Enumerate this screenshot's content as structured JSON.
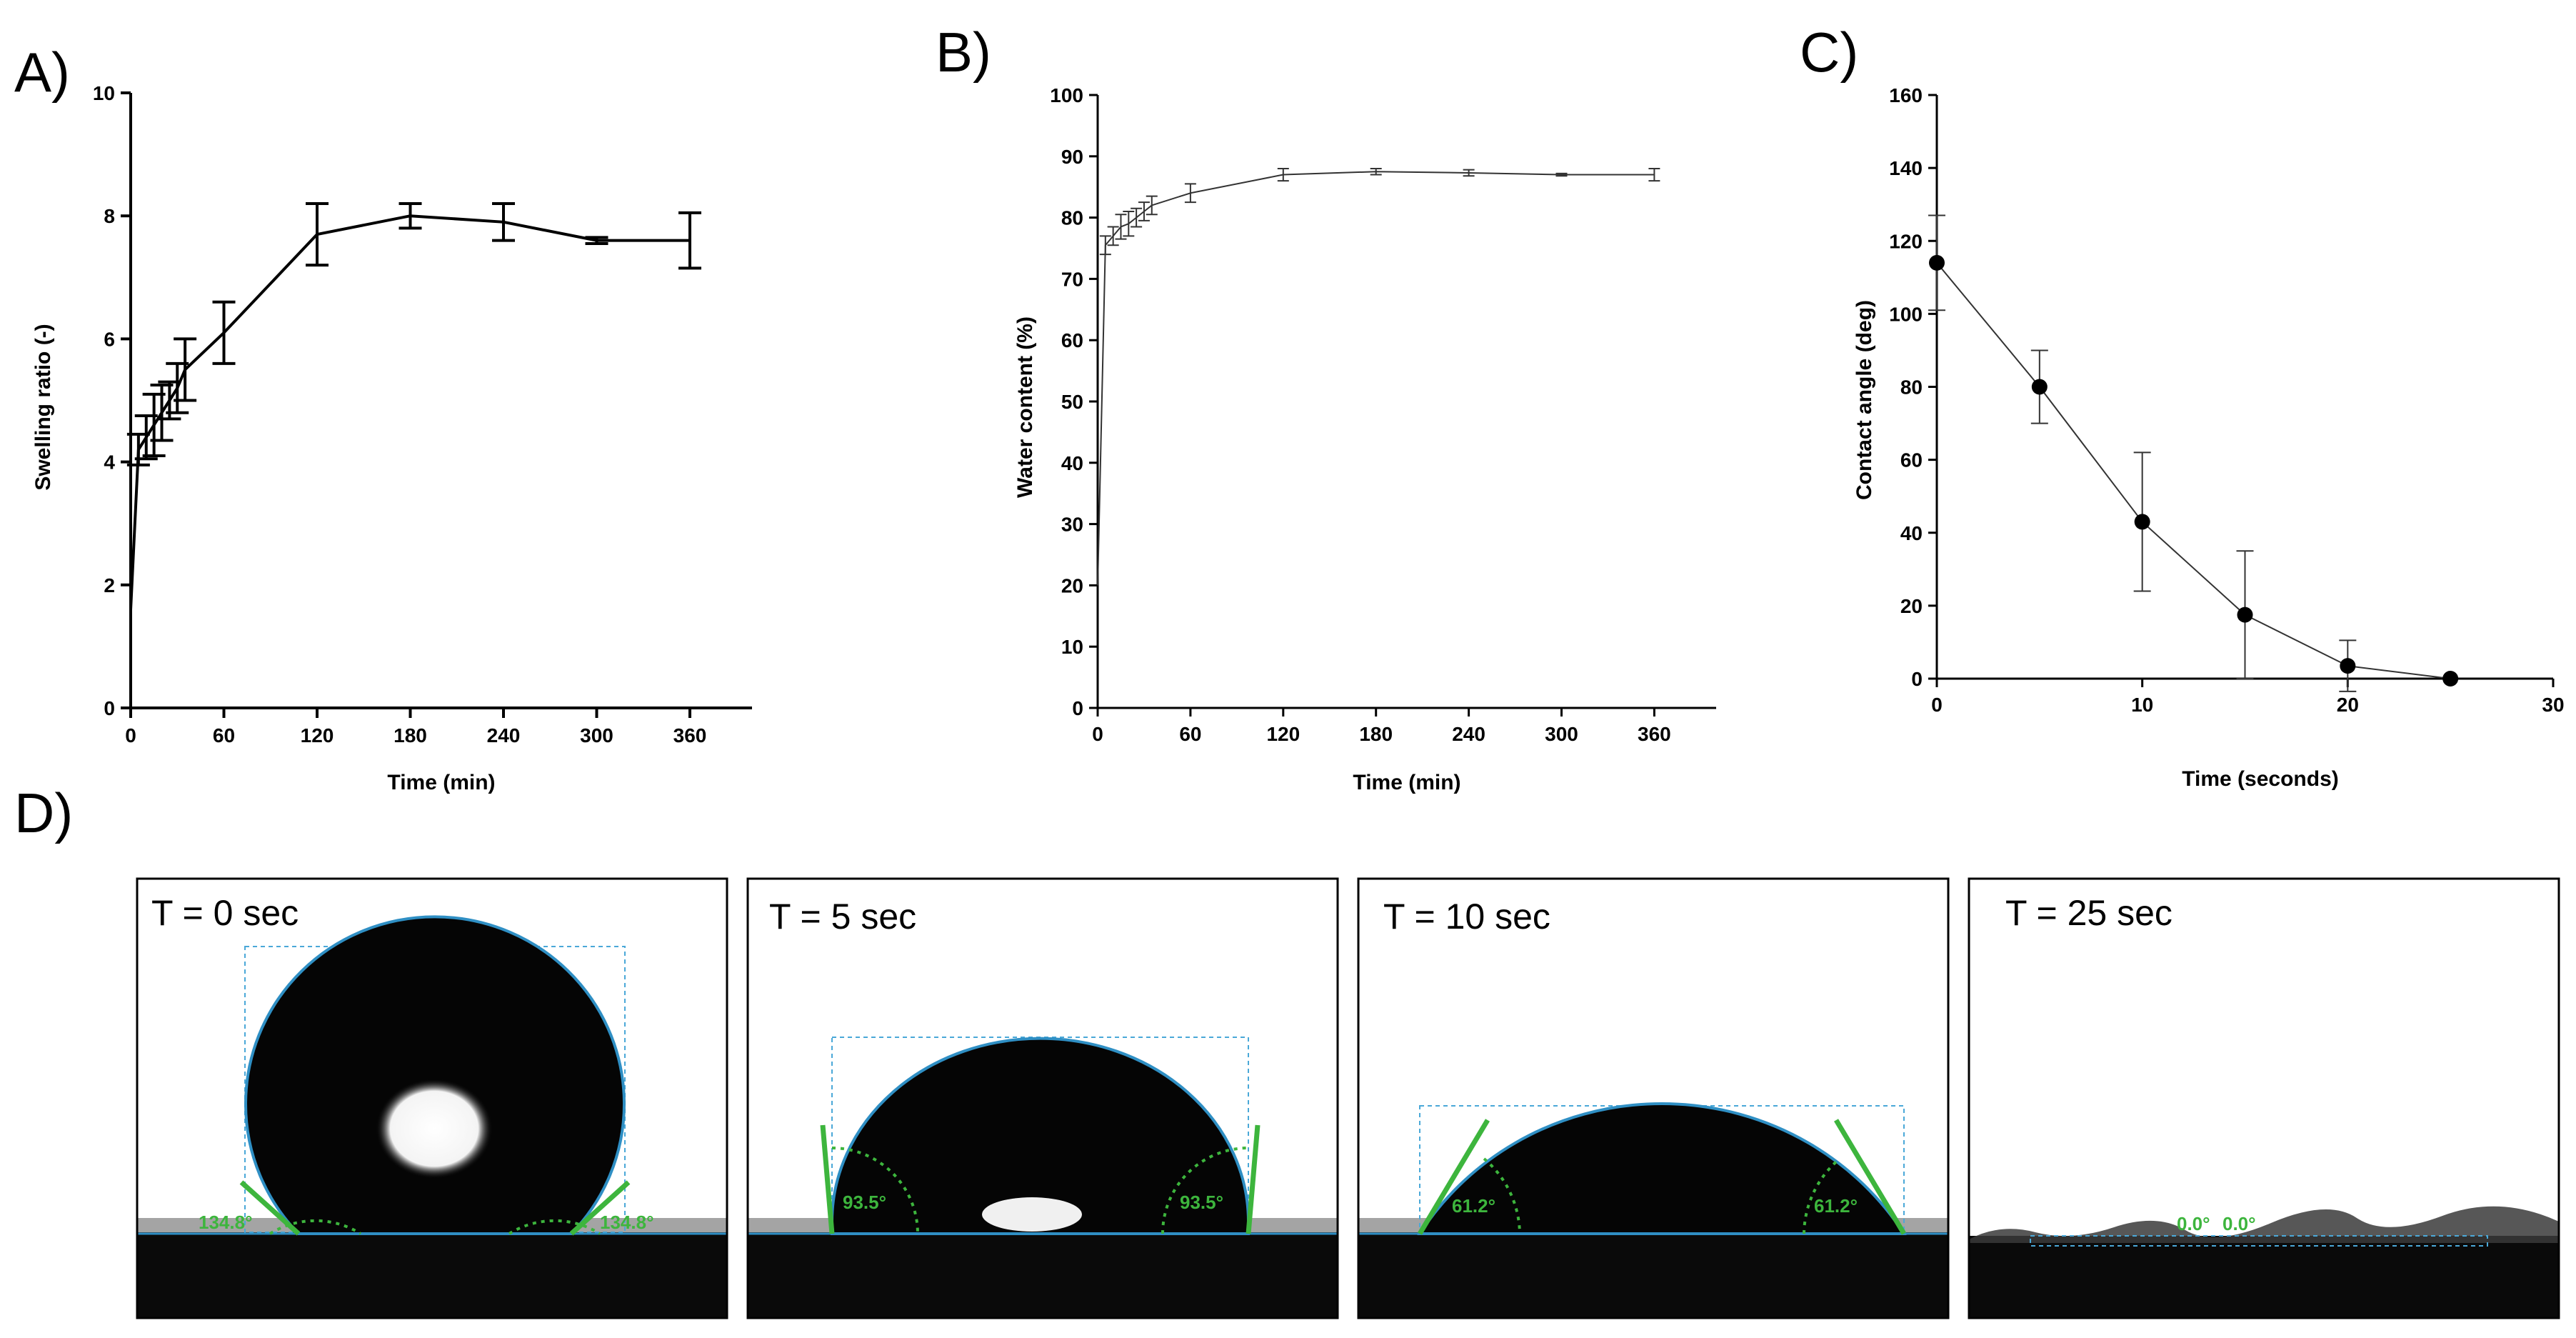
{
  "panels": {
    "A": "A)",
    "B": "B)",
    "C": "C)",
    "D": "D)"
  },
  "chart_data": [
    {
      "id": "A",
      "type": "line",
      "xlabel": "Time (min)",
      "ylabel": "Swelling ratio (-)",
      "xlim": [
        0,
        400
      ],
      "ylim": [
        0,
        10
      ],
      "xticks": [
        0,
        60,
        120,
        180,
        240,
        300,
        360
      ],
      "yticks": [
        0,
        2,
        4,
        6,
        8,
        10
      ],
      "grid": false,
      "x": [
        0,
        5,
        10,
        15,
        20,
        25,
        30,
        35,
        60,
        120,
        180,
        240,
        300,
        360
      ],
      "y": [
        1.6,
        4.2,
        4.4,
        4.6,
        4.8,
        5.0,
        5.2,
        5.5,
        6.1,
        7.7,
        8.0,
        7.9,
        7.6,
        7.6
      ],
      "err": [
        0,
        0.25,
        0.35,
        0.5,
        0.45,
        0.3,
        0.4,
        0.5,
        0.5,
        0.5,
        0.2,
        0.3,
        0.05,
        0.45
      ]
    },
    {
      "id": "B",
      "type": "line",
      "xlabel": "Time (min)",
      "ylabel": "Water content (%)",
      "xlim": [
        0,
        400
      ],
      "ylim": [
        0,
        100
      ],
      "xticks": [
        0,
        60,
        120,
        180,
        240,
        300,
        360
      ],
      "yticks": [
        0,
        10,
        20,
        30,
        40,
        50,
        60,
        70,
        80,
        90,
        100
      ],
      "grid": false,
      "x": [
        0,
        5,
        10,
        15,
        20,
        25,
        30,
        35,
        60,
        120,
        180,
        240,
        300,
        360
      ],
      "y": [
        20,
        75.5,
        77,
        78.5,
        79,
        80,
        81,
        82,
        84,
        87,
        87.5,
        87.3,
        87,
        87
      ],
      "err": [
        0,
        1.5,
        1.5,
        2,
        2,
        1.5,
        1.5,
        1.5,
        1.5,
        1,
        0.5,
        0.5,
        0.2,
        1
      ]
    },
    {
      "id": "C",
      "type": "line",
      "xlabel": "Time (seconds)",
      "ylabel": "Contact angle (deg)",
      "xlim": [
        0,
        30
      ],
      "ylim": [
        0,
        160
      ],
      "xticks": [
        0,
        10,
        20,
        30
      ],
      "yticks": [
        0,
        20,
        40,
        60,
        80,
        100,
        120,
        140,
        160
      ],
      "grid": false,
      "x": [
        0,
        5,
        10,
        15,
        20,
        25
      ],
      "y": [
        114,
        80,
        43,
        17.5,
        3.5,
        0
      ],
      "err": [
        13,
        10,
        19,
        17.5,
        7,
        0
      ]
    }
  ],
  "droplets": [
    {
      "label": "T = 0 sec",
      "left_angle": "134.8°",
      "right_angle": "134.8°"
    },
    {
      "label": "T = 5 sec",
      "left_angle": "93.5°",
      "right_angle": "93.5°"
    },
    {
      "label": "T = 10 sec",
      "left_angle": "61.2°",
      "right_angle": "61.2°"
    },
    {
      "label": "T = 25 sec",
      "left_angle": "0.0°",
      "right_angle": "0.0°"
    }
  ],
  "colors": {
    "axis": "#000000",
    "line_bc": "#333333",
    "fit_line": "#1e90c8",
    "angle_marker": "#3db53d",
    "surface": "#0a0a0a"
  }
}
